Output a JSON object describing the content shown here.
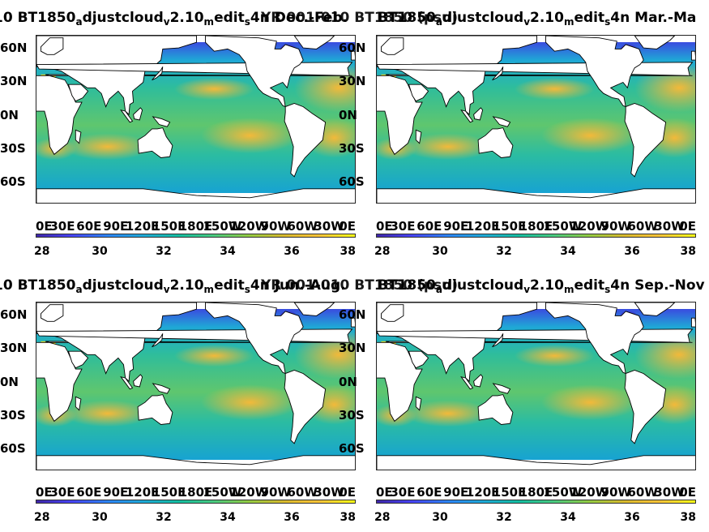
{
  "chart_data": [
    {
      "type": "heatmap",
      "title_parts": [
        "10 BT1850",
        "a",
        "djustcloud",
        "v",
        "2.10",
        "m",
        "edit",
        "s",
        "4n Dec.-Feb."
      ],
      "overlay_title": "YR 001-010 BT1850 (psu)",
      "ylabels": [
        "60N",
        "30N",
        "0N",
        "30S",
        "60S"
      ],
      "xlabels": [
        "0E",
        "30E",
        "60E",
        "90E",
        "120E",
        "150E",
        "180E",
        "150W",
        "120W",
        "90W",
        "60W",
        "30W",
        "0E"
      ],
      "colorbar": {
        "min": 28,
        "max": 38,
        "ticks": [
          "28",
          "30",
          "32",
          "34",
          "36",
          "38"
        ]
      }
    },
    {
      "type": "heatmap",
      "title_parts": [
        "BT1850",
        "a",
        "djustcloud",
        "v",
        "2.10",
        "m",
        "edit",
        "s",
        "4n Mar.-Ma"
      ],
      "ylabels": [
        "60N",
        "30N",
        "0N",
        "30S",
        "60S"
      ],
      "xlabels": [
        "0E",
        "30E",
        "60E",
        "90E",
        "120E",
        "150E",
        "180E",
        "150W",
        "120W",
        "90W",
        "60W",
        "30W",
        "0E"
      ],
      "colorbar": {
        "min": 28,
        "max": 38,
        "ticks": [
          "28",
          "30",
          "32",
          "34",
          "36",
          "38"
        ]
      }
    },
    {
      "type": "heatmap",
      "title_parts": [
        "10 BT1850",
        "a",
        "djustcloud",
        "v",
        "2.10",
        "m",
        "edit",
        "s",
        "4n Jun.-Aug."
      ],
      "overlay_title": "YR 001-010 BT1850 (psu)",
      "ylabels": [
        "60N",
        "30N",
        "0N",
        "30S",
        "60S"
      ],
      "xlabels": [
        "0E",
        "30E",
        "60E",
        "90E",
        "120E",
        "150E",
        "180E",
        "150W",
        "120W",
        "90W",
        "60W",
        "30W",
        "0E"
      ],
      "colorbar": {
        "min": 28,
        "max": 38,
        "ticks": [
          "28",
          "30",
          "32",
          "34",
          "36",
          "38"
        ]
      }
    },
    {
      "type": "heatmap",
      "title_parts": [
        "BT1850",
        "a",
        "djustcloud",
        "v",
        "2.10",
        "m",
        "edit",
        "s",
        "4n Sep.-Nov"
      ],
      "ylabels": [
        "60N",
        "30N",
        "0N",
        "30S",
        "60S"
      ],
      "xlabels": [
        "0E",
        "30E",
        "60E",
        "90E",
        "120E",
        "150E",
        "180E",
        "150W",
        "120W",
        "90W",
        "60W",
        "30W",
        "0E"
      ],
      "colorbar": {
        "min": 28,
        "max": 38,
        "ticks": [
          "28",
          "30",
          "32",
          "34",
          "36",
          "38"
        ]
      }
    }
  ]
}
